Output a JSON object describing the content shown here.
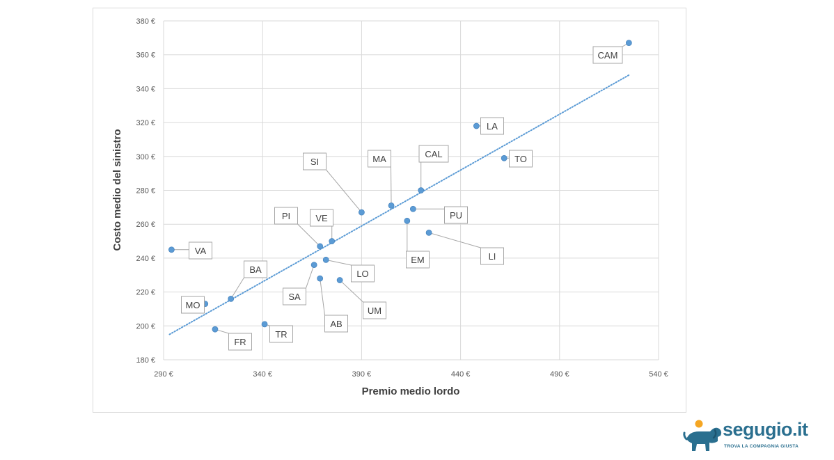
{
  "chart_data": {
    "type": "scatter",
    "xlabel": "Premio medio lordo",
    "ylabel": "Costo medio del sinistro",
    "xlim": [
      290,
      540
    ],
    "ylim": [
      180,
      380
    ],
    "x_ticks": [
      "290 €",
      "340 €",
      "390 €",
      "440 €",
      "490 €",
      "540 €"
    ],
    "y_ticks": [
      "180 €",
      "200 €",
      "220 €",
      "240 €",
      "260 €",
      "280 €",
      "300 €",
      "320 €",
      "340 €",
      "360 €",
      "380 €"
    ],
    "grid": true,
    "trendline": {
      "type": "linear",
      "style": "dotted",
      "x": [
        293,
        525
      ],
      "y": [
        195,
        348
      ]
    },
    "point_color": "#5b9bd5",
    "points": [
      {
        "label": "VA",
        "x": 294,
        "y": 245
      },
      {
        "label": "MO",
        "x": 311,
        "y": 213
      },
      {
        "label": "FR",
        "x": 316,
        "y": 198
      },
      {
        "label": "BA",
        "x": 324,
        "y": 216
      },
      {
        "label": "TR",
        "x": 341,
        "y": 201
      },
      {
        "label": "SA",
        "x": 366,
        "y": 236
      },
      {
        "label": "PI",
        "x": 369,
        "y": 247
      },
      {
        "label": "AB",
        "x": 369,
        "y": 228
      },
      {
        "label": "LO",
        "x": 372,
        "y": 239
      },
      {
        "label": "VE",
        "x": 375,
        "y": 250
      },
      {
        "label": "UM",
        "x": 379,
        "y": 227
      },
      {
        "label": "SI",
        "x": 390,
        "y": 267
      },
      {
        "label": "MA",
        "x": 405,
        "y": 271
      },
      {
        "label": "EM",
        "x": 413,
        "y": 262
      },
      {
        "label": "PU",
        "x": 416,
        "y": 269
      },
      {
        "label": "CAL",
        "x": 420,
        "y": 280
      },
      {
        "label": "LI",
        "x": 424,
        "y": 255
      },
      {
        "label": "LA",
        "x": 448,
        "y": 318
      },
      {
        "label": "TO",
        "x": 462,
        "y": 299
      },
      {
        "label": "CAM",
        "x": 525,
        "y": 367
      }
    ]
  },
  "brand": {
    "name": "segugio.it",
    "tagline": "TROVA LA COMPAGNIA GIUSTA"
  }
}
